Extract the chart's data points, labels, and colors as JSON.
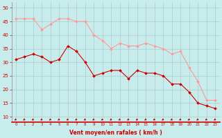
{
  "x": [
    0,
    1,
    2,
    3,
    4,
    5,
    6,
    7,
    8,
    9,
    10,
    11,
    12,
    13,
    14,
    15,
    16,
    17,
    18,
    19,
    20,
    21,
    22,
    23
  ],
  "wind_avg": [
    31,
    32,
    33,
    32,
    30,
    31,
    36,
    34,
    30,
    25,
    26,
    27,
    27,
    24,
    27,
    26,
    26,
    25,
    22,
    22,
    19,
    15,
    14,
    13
  ],
  "wind_gust": [
    46,
    46,
    46,
    42,
    44,
    46,
    46,
    45,
    45,
    40,
    38,
    35,
    37,
    36,
    36,
    37,
    36,
    35,
    33,
    34,
    28,
    23,
    16,
    16
  ],
  "avg_color": "#cc0000",
  "gust_color": "#ff9999",
  "bg_color": "#c8ecec",
  "grid_color": "#aacccc",
  "xlabel": "Vent moyen/en rafales ( km/h )",
  "ylabel_ticks": [
    10,
    15,
    20,
    25,
    30,
    35,
    40,
    45,
    50
  ],
  "xlim": [
    -0.5,
    23.5
  ],
  "ylim": [
    8,
    52
  ],
  "xlabel_color": "#cc0000",
  "tick_color": "#cc0000",
  "arrow_color": "#cc0000",
  "figsize": [
    3.2,
    2.0
  ],
  "dpi": 100
}
